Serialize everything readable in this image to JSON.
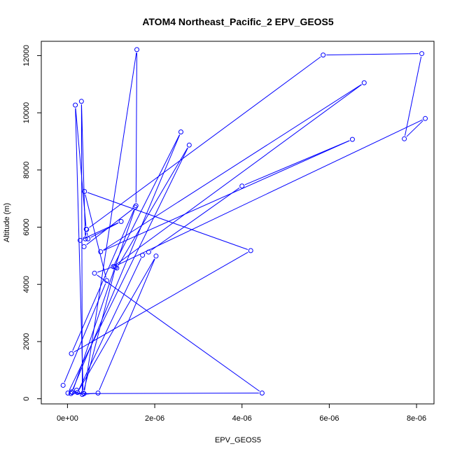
{
  "chart_data": {
    "type": "line",
    "title": "ATOM4 Northeast_Pacific_2 EPV_GEOS5",
    "xlabel": "EPV_GEOS5",
    "ylabel": "Altitude (m)",
    "xlim": [
      -6e-07,
      8.4e-06
    ],
    "ylim": [
      -180,
      12500
    ],
    "x_ticks": [
      0,
      2e-06,
      4e-06,
      6e-06,
      8e-06
    ],
    "x_tick_labels": [
      "0e+00",
      "2e-06",
      "4e-06",
      "6e-06",
      "8e-06"
    ],
    "y_ticks": [
      0,
      2000,
      4000,
      6000,
      8000,
      10000,
      12000
    ],
    "y_tick_labels": [
      "0",
      "2000",
      "4000",
      "6000",
      "8000",
      "10000",
      "12000"
    ],
    "grid": false,
    "marker": "open-circle",
    "series": [
      {
        "color": "#0000ff",
        "x": [
          -1e-07,
          9e-07,
          3.9e-07,
          4.2e-06,
          9e-08,
          1.55e-06,
          3.8e-07,
          2.9e-07,
          1.23e-06,
          4.7e-07,
          4.4e-07,
          5.86e-06,
          8.12e-06,
          7.72e-06,
          8.2e-06,
          1.08e-06,
          6.2e-07,
          4.46e-06,
          8e-08,
          2.6e-06,
          1.05e-06,
          6.8e-06,
          7.6e-07,
          6.53e-06,
          4e-06,
          1.86e-06,
          1.72e-06,
          2.3e-07,
          2.03e-06,
          7e-07,
          3.4e-07,
          3.2e-07,
          4.1e-07,
          4.3e-07,
          1.8e-07,
          3.6e-07,
          1.1e-06,
          1.13e-06,
          2.79e-06,
          1e-08,
          9e-08,
          3.8e-07,
          1.59e-06,
          1.57e-06,
          1.1e-07,
          2.1e-07
        ],
        "y": [
          470,
          4130,
          7250,
          5180,
          1580,
          6700,
          5320,
          5540,
          6200,
          5590,
          5920,
          12020,
          12070,
          9090,
          9800,
          4630,
          4390,
          200,
          180,
          9330,
          4620,
          11050,
          5140,
          9070,
          7440,
          5130,
          5020,
          220,
          4990,
          200,
          150,
          10400,
          5590,
          5930,
          10270,
          200,
          4600,
          4570,
          8870,
          200,
          240,
          180,
          12210,
          6750,
          220,
          300
        ]
      }
    ]
  }
}
